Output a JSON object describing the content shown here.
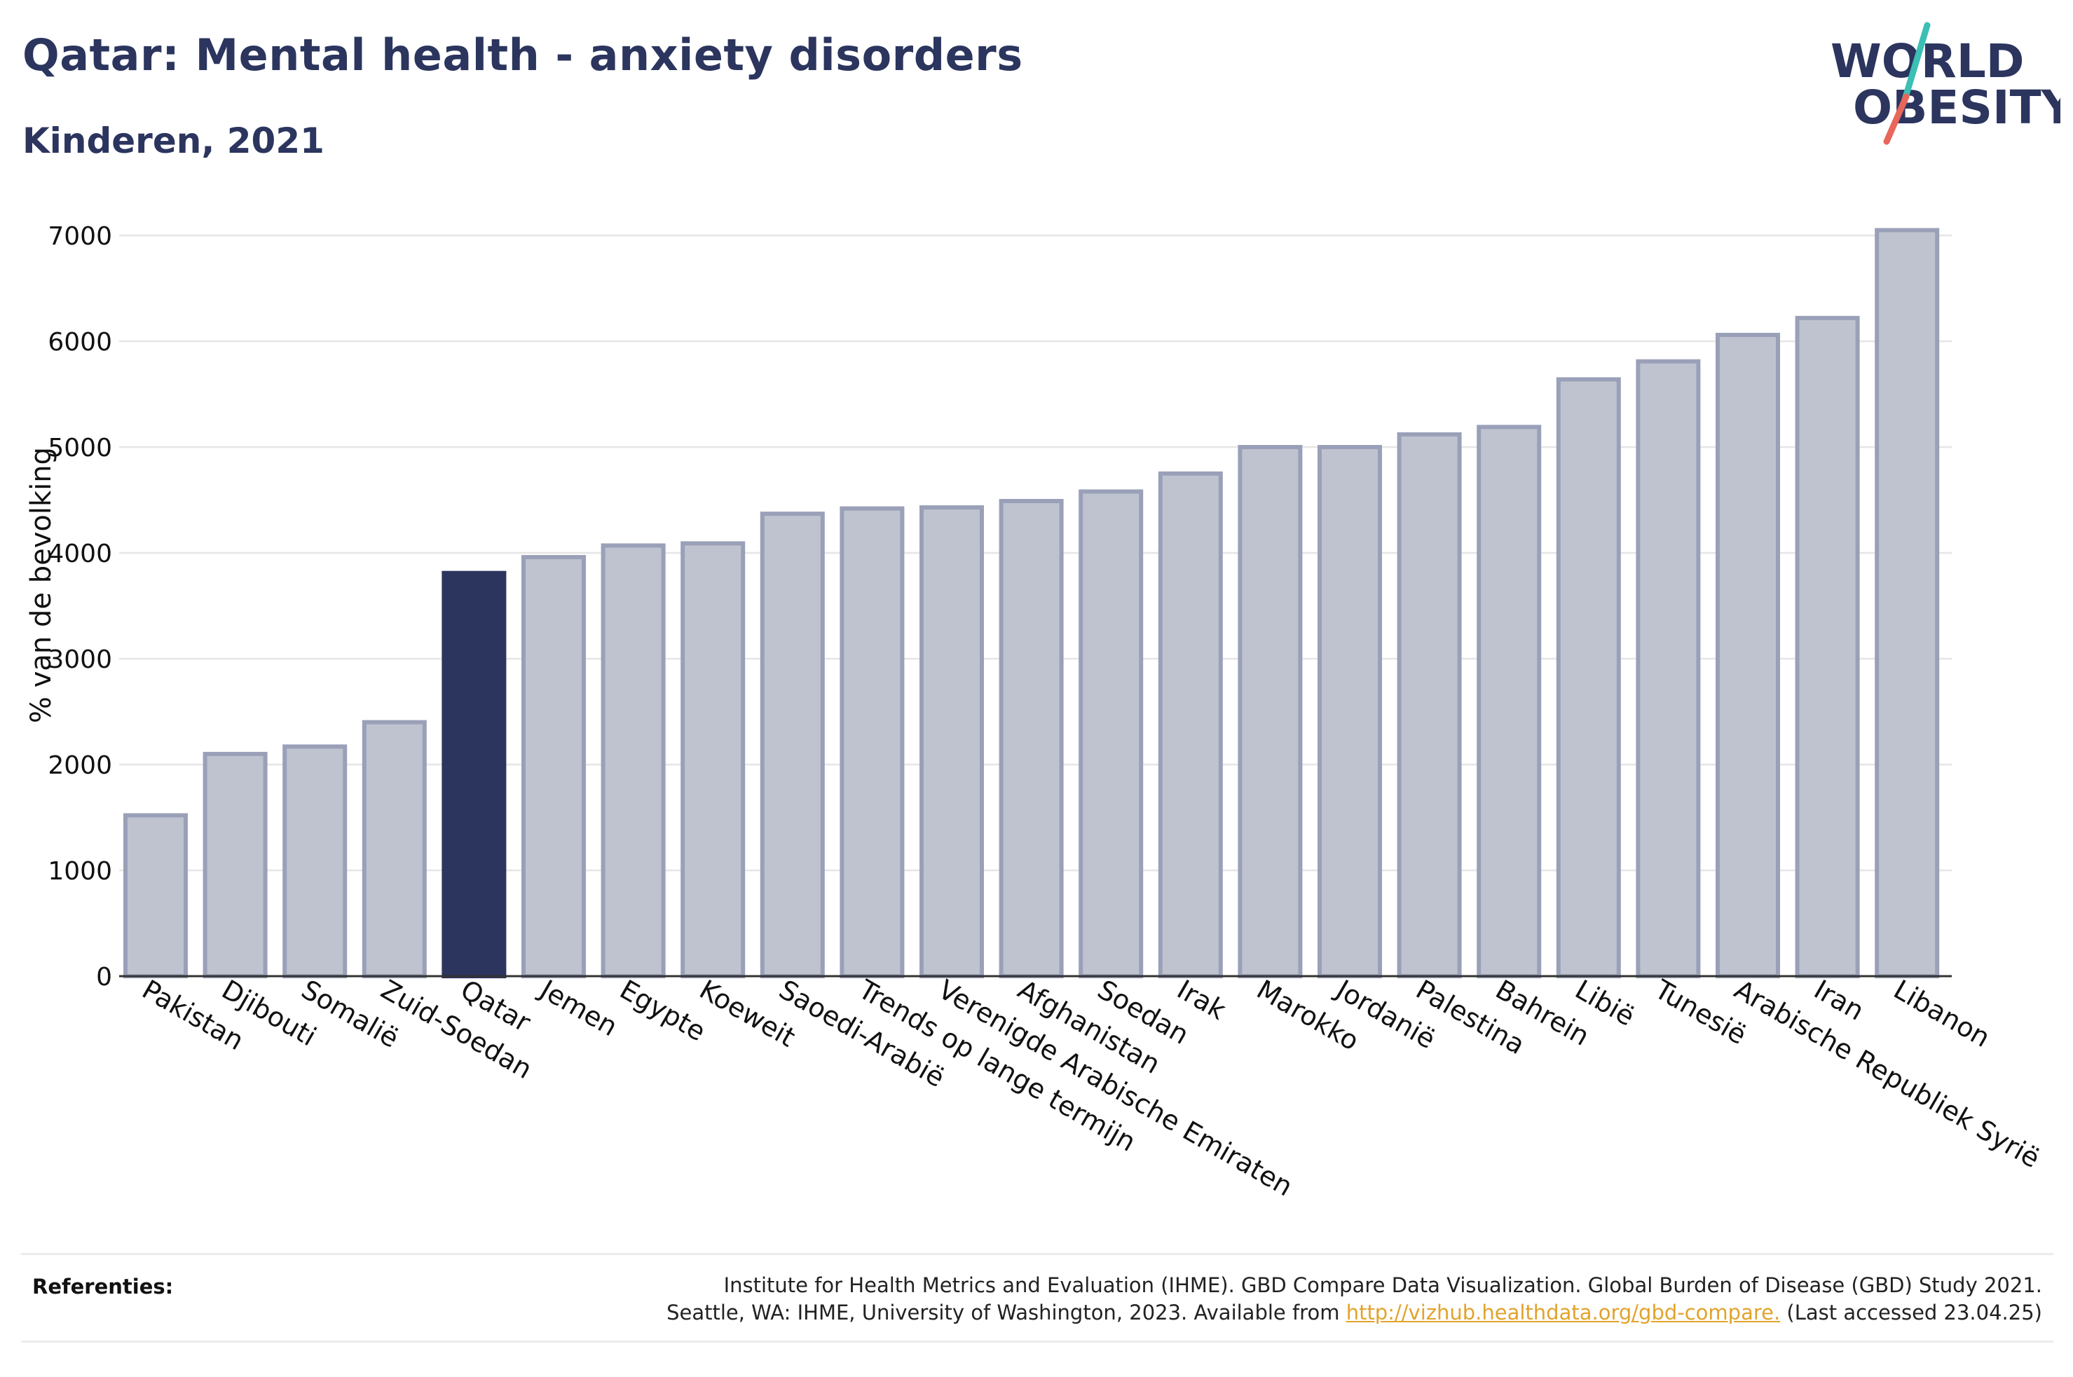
{
  "header": {
    "title": "Qatar: Mental health - anxiety disorders",
    "subtitle": "Kinderen, 2021"
  },
  "logo": {
    "line1": "WORLD",
    "line2": "OBESITY",
    "colors": {
      "text": "#2b355e",
      "slash_top": "#3cbfb4",
      "slash_bottom": "#e8665a"
    }
  },
  "chart_data": {
    "type": "bar",
    "title": "Qatar: Mental health - anxiety disorders",
    "subtitle": "Kinderen, 2021",
    "ylabel": "% van de bevolking",
    "xlabel": "",
    "ylim": [
      0,
      7000
    ],
    "yticks": [
      0,
      1000,
      2000,
      3000,
      4000,
      5000,
      6000,
      7000
    ],
    "grid": true,
    "highlight": "Qatar",
    "colors": {
      "bar": "#bfc3d0",
      "bar_border": "#9aa0b8",
      "highlight": "#2b355e"
    },
    "categories": [
      "Pakistan",
      "Djibouti",
      "Somalië",
      "Zuid-Soedan",
      "Qatar",
      "Jemen",
      "Egypte",
      "Koeweit",
      "Saoedi-Arabië",
      "Trends op lange termijn",
      "Verenigde Arabische Emiraten",
      "Afghanistan",
      "Soedan",
      "Irak",
      "Marokko",
      "Jordanië",
      "Palestina",
      "Bahrein",
      "Libië",
      "Tunesië",
      "Arabische Republiek Syrië",
      "Iran",
      "Libanon"
    ],
    "values": [
      1520,
      2100,
      2170,
      2400,
      3810,
      3960,
      4070,
      4090,
      4370,
      4420,
      4430,
      4490,
      4580,
      4750,
      5000,
      5000,
      5120,
      5190,
      5640,
      5810,
      6060,
      6220,
      7050
    ]
  },
  "references": {
    "label": "Referenties:",
    "line1": "Institute for Health Metrics and Evaluation (IHME). GBD Compare Data Visualization. Global Burden of Disease (GBD) Study 2021.",
    "line2_before": "Seattle, WA: IHME, University of Washington, 2023. Available from",
    "link": "http://vizhub.healthdata.org/gbd-compare.",
    "line2_after": "(Last accessed 23.04.25)"
  }
}
